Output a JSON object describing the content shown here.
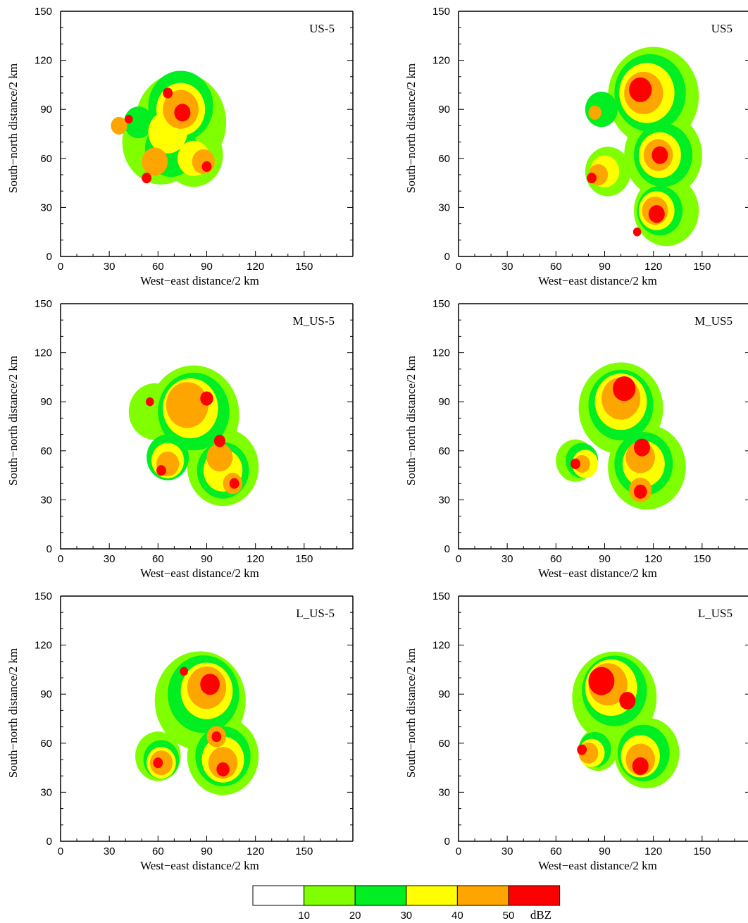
{
  "chart_data": [
    {
      "type": "heatmap",
      "panel_label": "US-5",
      "xlabel": "West−east distance/2 km",
      "ylabel": "South−north distance/2 km",
      "xlim": [
        0,
        180
      ],
      "ylim": [
        0,
        150
      ],
      "xticks": [
        0,
        30,
        60,
        90,
        120,
        150
      ],
      "yticks": [
        0,
        30,
        60,
        90,
        120,
        150
      ],
      "cells": [
        {
          "x": 74,
          "y": 82,
          "r": 28,
          "level": 10
        },
        {
          "x": 62,
          "y": 70,
          "r": 24,
          "level": 10
        },
        {
          "x": 82,
          "y": 62,
          "r": 18,
          "level": 10
        },
        {
          "x": 74,
          "y": 92,
          "r": 20,
          "level": 20
        },
        {
          "x": 68,
          "y": 66,
          "r": 16,
          "level": 20
        },
        {
          "x": 48,
          "y": 82,
          "r": 9,
          "level": 20
        },
        {
          "x": 74,
          "y": 90,
          "r": 15,
          "level": 30
        },
        {
          "x": 66,
          "y": 76,
          "r": 12,
          "level": 30
        },
        {
          "x": 82,
          "y": 60,
          "r": 10,
          "level": 30
        },
        {
          "x": 74,
          "y": 90,
          "r": 11,
          "level": 40
        },
        {
          "x": 58,
          "y": 58,
          "r": 8,
          "level": 40
        },
        {
          "x": 88,
          "y": 58,
          "r": 7,
          "level": 40
        },
        {
          "x": 36,
          "y": 80,
          "r": 5,
          "level": 40
        },
        {
          "x": 75,
          "y": 88,
          "r": 5,
          "level": 50
        },
        {
          "x": 66,
          "y": 100,
          "r": 3,
          "level": 50
        },
        {
          "x": 90,
          "y": 55,
          "r": 3,
          "level": 50
        },
        {
          "x": 53,
          "y": 48,
          "r": 3,
          "level": 50
        },
        {
          "x": 42,
          "y": 84,
          "r": 2.5,
          "level": 50
        }
      ]
    },
    {
      "type": "heatmap",
      "panel_label": "US5",
      "xlabel": "West−east distance/2 km",
      "ylabel": "South−north distance/2 km",
      "xlim": [
        0,
        180
      ],
      "ylim": [
        0,
        150
      ],
      "xticks": [
        0,
        30,
        60,
        90,
        120,
        150
      ],
      "yticks": [
        0,
        30,
        60,
        90,
        120,
        150
      ],
      "cells": [
        {
          "x": 120,
          "y": 98,
          "r": 28,
          "level": 10
        },
        {
          "x": 126,
          "y": 62,
          "r": 24,
          "level": 10
        },
        {
          "x": 128,
          "y": 28,
          "r": 20,
          "level": 10
        },
        {
          "x": 92,
          "y": 52,
          "r": 14,
          "level": 10
        },
        {
          "x": 118,
          "y": 100,
          "r": 22,
          "level": 20
        },
        {
          "x": 126,
          "y": 62,
          "r": 18,
          "level": 20
        },
        {
          "x": 124,
          "y": 28,
          "r": 14,
          "level": 20
        },
        {
          "x": 88,
          "y": 90,
          "r": 10,
          "level": 20
        },
        {
          "x": 116,
          "y": 100,
          "r": 17,
          "level": 30
        },
        {
          "x": 124,
          "y": 62,
          "r": 13,
          "level": 30
        },
        {
          "x": 122,
          "y": 28,
          "r": 11,
          "level": 30
        },
        {
          "x": 90,
          "y": 52,
          "r": 9,
          "level": 30
        },
        {
          "x": 114,
          "y": 100,
          "r": 12,
          "level": 40
        },
        {
          "x": 123,
          "y": 62,
          "r": 9,
          "level": 40
        },
        {
          "x": 121,
          "y": 28,
          "r": 8,
          "level": 40
        },
        {
          "x": 86,
          "y": 50,
          "r": 6,
          "level": 40
        },
        {
          "x": 84,
          "y": 88,
          "r": 4,
          "level": 40
        },
        {
          "x": 112,
          "y": 102,
          "r": 7,
          "level": 50
        },
        {
          "x": 124,
          "y": 62,
          "r": 5,
          "level": 50
        },
        {
          "x": 122,
          "y": 26,
          "r": 5,
          "level": 50
        },
        {
          "x": 82,
          "y": 48,
          "r": 3,
          "level": 50
        },
        {
          "x": 110,
          "y": 15,
          "r": 2.5,
          "level": 50
        }
      ]
    },
    {
      "type": "heatmap",
      "panel_label": "M_US-5",
      "xlabel": "West−east distance/2 km",
      "ylabel": "South−north distance/2 km",
      "xlim": [
        0,
        180
      ],
      "ylim": [
        0,
        150
      ],
      "xticks": [
        0,
        30,
        60,
        90,
        120,
        150
      ],
      "yticks": [
        0,
        30,
        60,
        90,
        120,
        150
      ],
      "cells": [
        {
          "x": 82,
          "y": 82,
          "r": 28,
          "level": 10
        },
        {
          "x": 100,
          "y": 50,
          "r": 22,
          "level": 10
        },
        {
          "x": 58,
          "y": 84,
          "r": 16,
          "level": 10
        },
        {
          "x": 82,
          "y": 84,
          "r": 22,
          "level": 20
        },
        {
          "x": 100,
          "y": 48,
          "r": 16,
          "level": 20
        },
        {
          "x": 66,
          "y": 56,
          "r": 13,
          "level": 20
        },
        {
          "x": 80,
          "y": 86,
          "r": 17,
          "level": 30
        },
        {
          "x": 100,
          "y": 48,
          "r": 12,
          "level": 30
        },
        {
          "x": 66,
          "y": 54,
          "r": 10,
          "level": 30
        },
        {
          "x": 78,
          "y": 88,
          "r": 13,
          "level": 40
        },
        {
          "x": 98,
          "y": 56,
          "r": 8,
          "level": 40
        },
        {
          "x": 66,
          "y": 52,
          "r": 7,
          "level": 40
        },
        {
          "x": 106,
          "y": 40,
          "r": 6,
          "level": 40
        },
        {
          "x": 90,
          "y": 92,
          "r": 4,
          "level": 50
        },
        {
          "x": 98,
          "y": 66,
          "r": 3.5,
          "level": 50
        },
        {
          "x": 62,
          "y": 48,
          "r": 3,
          "level": 50
        },
        {
          "x": 107,
          "y": 40,
          "r": 3,
          "level": 50
        },
        {
          "x": 55,
          "y": 90,
          "r": 2.5,
          "level": 50
        }
      ]
    },
    {
      "type": "heatmap",
      "panel_label": "M_US5",
      "xlabel": "West−east distance/2 km",
      "ylabel": "South−north distance/2 km",
      "xlim": [
        0,
        180
      ],
      "ylim": [
        0,
        150
      ],
      "xticks": [
        0,
        30,
        60,
        90,
        120,
        150
      ],
      "yticks": [
        0,
        30,
        60,
        90,
        120,
        150
      ],
      "cells": [
        {
          "x": 100,
          "y": 86,
          "r": 26,
          "level": 10
        },
        {
          "x": 116,
          "y": 50,
          "r": 24,
          "level": 10
        },
        {
          "x": 72,
          "y": 54,
          "r": 12,
          "level": 10
        },
        {
          "x": 100,
          "y": 88,
          "r": 20,
          "level": 20
        },
        {
          "x": 114,
          "y": 52,
          "r": 18,
          "level": 20
        },
        {
          "x": 76,
          "y": 54,
          "r": 10,
          "level": 20
        },
        {
          "x": 100,
          "y": 90,
          "r": 16,
          "level": 30
        },
        {
          "x": 114,
          "y": 52,
          "r": 13,
          "level": 30
        },
        {
          "x": 78,
          "y": 52,
          "r": 8,
          "level": 30
        },
        {
          "x": 100,
          "y": 92,
          "r": 12,
          "level": 40
        },
        {
          "x": 112,
          "y": 56,
          "r": 9,
          "level": 40
        },
        {
          "x": 112,
          "y": 36,
          "r": 7,
          "level": 40
        },
        {
          "x": 76,
          "y": 52,
          "r": 5,
          "level": 40
        },
        {
          "x": 102,
          "y": 98,
          "r": 7,
          "level": 50
        },
        {
          "x": 113,
          "y": 62,
          "r": 5,
          "level": 50
        },
        {
          "x": 112,
          "y": 35,
          "r": 4,
          "level": 50
        },
        {
          "x": 72,
          "y": 52,
          "r": 3,
          "level": 50
        }
      ]
    },
    {
      "type": "heatmap",
      "panel_label": "L_US-5",
      "xlabel": "West−east distance/2 km",
      "ylabel": "South−north distance/2 km",
      "xlim": [
        0,
        180
      ],
      "ylim": [
        0,
        150
      ],
      "xticks": [
        0,
        30,
        60,
        90,
        120,
        150
      ],
      "yticks": [
        0,
        30,
        60,
        90,
        120,
        150
      ],
      "cells": [
        {
          "x": 86,
          "y": 86,
          "r": 28,
          "level": 10
        },
        {
          "x": 100,
          "y": 52,
          "r": 22,
          "level": 10
        },
        {
          "x": 60,
          "y": 52,
          "r": 14,
          "level": 10
        },
        {
          "x": 88,
          "y": 90,
          "r": 22,
          "level": 20
        },
        {
          "x": 100,
          "y": 52,
          "r": 17,
          "level": 20
        },
        {
          "x": 62,
          "y": 50,
          "r": 11,
          "level": 20
        },
        {
          "x": 90,
          "y": 92,
          "r": 16,
          "level": 30
        },
        {
          "x": 100,
          "y": 50,
          "r": 13,
          "level": 30
        },
        {
          "x": 62,
          "y": 48,
          "r": 9,
          "level": 30
        },
        {
          "x": 90,
          "y": 94,
          "r": 12,
          "level": 40
        },
        {
          "x": 100,
          "y": 48,
          "r": 9,
          "level": 40
        },
        {
          "x": 62,
          "y": 48,
          "r": 7,
          "level": 40
        },
        {
          "x": 96,
          "y": 64,
          "r": 6,
          "level": 40
        },
        {
          "x": 92,
          "y": 96,
          "r": 6,
          "level": 50
        },
        {
          "x": 100,
          "y": 44,
          "r": 4,
          "level": 50
        },
        {
          "x": 60,
          "y": 48,
          "r": 3,
          "level": 50
        },
        {
          "x": 96,
          "y": 64,
          "r": 3,
          "level": 50
        },
        {
          "x": 76,
          "y": 104,
          "r": 2.5,
          "level": 50
        }
      ]
    },
    {
      "type": "heatmap",
      "panel_label": "L_US5",
      "xlabel": "West−east distance/2 km",
      "ylabel": "South−north distance/2 km",
      "xlim": [
        0,
        180
      ],
      "ylim": [
        0,
        150
      ],
      "xticks": [
        0,
        30,
        60,
        90,
        120,
        150
      ],
      "yticks": [
        0,
        30,
        60,
        90,
        120,
        150
      ],
      "cells": [
        {
          "x": 96,
          "y": 88,
          "r": 26,
          "level": 10
        },
        {
          "x": 116,
          "y": 54,
          "r": 20,
          "level": 10
        },
        {
          "x": 86,
          "y": 56,
          "r": 12,
          "level": 10
        },
        {
          "x": 96,
          "y": 92,
          "r": 20,
          "level": 20
        },
        {
          "x": 114,
          "y": 54,
          "r": 16,
          "level": 20
        },
        {
          "x": 84,
          "y": 56,
          "r": 10,
          "level": 20
        },
        {
          "x": 94,
          "y": 94,
          "r": 16,
          "level": 30
        },
        {
          "x": 112,
          "y": 52,
          "r": 12,
          "level": 30
        },
        {
          "x": 82,
          "y": 54,
          "r": 8,
          "level": 30
        },
        {
          "x": 92,
          "y": 96,
          "r": 12,
          "level": 40
        },
        {
          "x": 112,
          "y": 50,
          "r": 9,
          "level": 40
        },
        {
          "x": 80,
          "y": 54,
          "r": 6,
          "level": 40
        },
        {
          "x": 88,
          "y": 98,
          "r": 8,
          "level": 50
        },
        {
          "x": 104,
          "y": 86,
          "r": 5,
          "level": 50
        },
        {
          "x": 112,
          "y": 46,
          "r": 5,
          "level": 50
        },
        {
          "x": 76,
          "y": 56,
          "r": 3,
          "level": 50
        }
      ]
    }
  ],
  "colorbar": {
    "unit": "dBZ",
    "labels": [
      "10",
      "20",
      "30",
      "40",
      "50"
    ],
    "colors": [
      "#ffffff",
      "#7fff00",
      "#00ee22",
      "#ffff00",
      "#ffa500",
      "#ff0000"
    ]
  },
  "level_colors": {
    "10": "#7fff00",
    "20": "#00ee22",
    "30": "#ffff00",
    "40": "#ffa500",
    "50": "#ff0000"
  }
}
